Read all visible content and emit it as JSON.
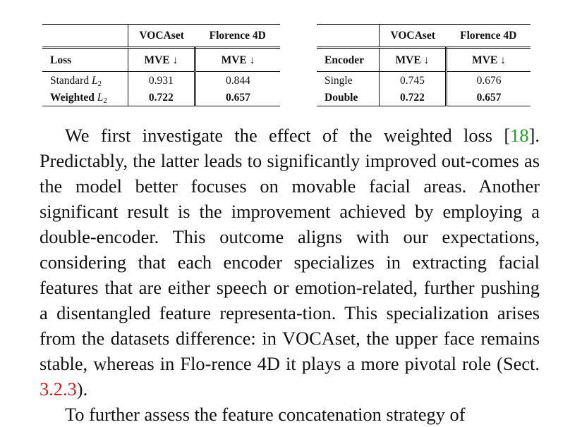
{
  "table_left": {
    "group_headers": [
      "VOCAset",
      "Florence 4D"
    ],
    "row_header": "Loss",
    "metric_headers": [
      "MVE ↓",
      "MVE ↓"
    ],
    "rows": [
      {
        "label": "Standard",
        "sub": "2",
        "values": [
          "0.931",
          "0.844"
        ],
        "bold": false
      },
      {
        "label": "Weighted",
        "sub": "2",
        "values": [
          "0.722",
          "0.657"
        ],
        "bold": true
      }
    ]
  },
  "table_right": {
    "group_headers": [
      "VOCAset",
      "Florence 4D"
    ],
    "row_header": "Encoder",
    "metric_headers": [
      "MVE ↓",
      "MVE ↓"
    ],
    "rows": [
      {
        "label": "Single",
        "values": [
          "0.745",
          "0.676"
        ],
        "bold": false
      },
      {
        "label": "Double",
        "values": [
          "0.722",
          "0.657"
        ],
        "bold": true
      }
    ]
  },
  "paragraph1": {
    "before_cite": "We first investigate the effect of the weighted loss [",
    "cite": "18",
    "after_cite": "]. Predictably, the latter leads to significantly improved out-comes as the model better focuses on movable facial areas. Another significant result is the improvement achieved by employing a double-encoder. This outcome aligns with our expectations, considering that each encoder specializes in extracting facial features that are either speech or emotion-related, further pushing a disentangled feature representa-tion. This specialization arises from the datasets difference: in VOCAset, the upper face remains stable, whereas in Flo-rence 4D it plays a more pivotal role (Sect. ",
    "sect_ref": "3.2.3",
    "end": ")."
  },
  "paragraph2": {
    "text": "To further assess the feature concatenation strategy of"
  }
}
